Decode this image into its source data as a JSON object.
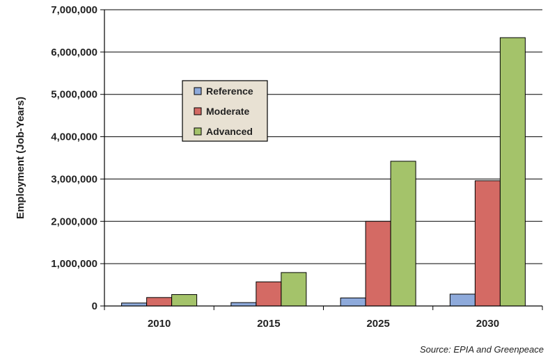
{
  "chart_data": {
    "type": "bar",
    "title": "",
    "xlabel": "",
    "ylabel": "Employment (Job-Years)",
    "categories": [
      "2010",
      "2015",
      "2025",
      "2030"
    ],
    "series": [
      {
        "name": "Reference",
        "color": "#8eaadb",
        "values": [
          70000,
          80000,
          190000,
          280000
        ]
      },
      {
        "name": "Moderate",
        "color": "#d46a64",
        "values": [
          200000,
          570000,
          2000000,
          2960000
        ]
      },
      {
        "name": "Advanced",
        "color": "#a4c36a",
        "values": [
          270000,
          790000,
          3420000,
          6340000
        ]
      }
    ],
    "ylim": [
      0,
      7000000
    ],
    "yticks": [
      "0",
      "1,000,000",
      "2,000,000",
      "3,000,000",
      "4,000,000",
      "5,000,000",
      "6,000,000",
      "7,000,000"
    ],
    "grid": true,
    "legend_position": "upper-left"
  },
  "source_note": "Source: EPIA and Greenpeace"
}
